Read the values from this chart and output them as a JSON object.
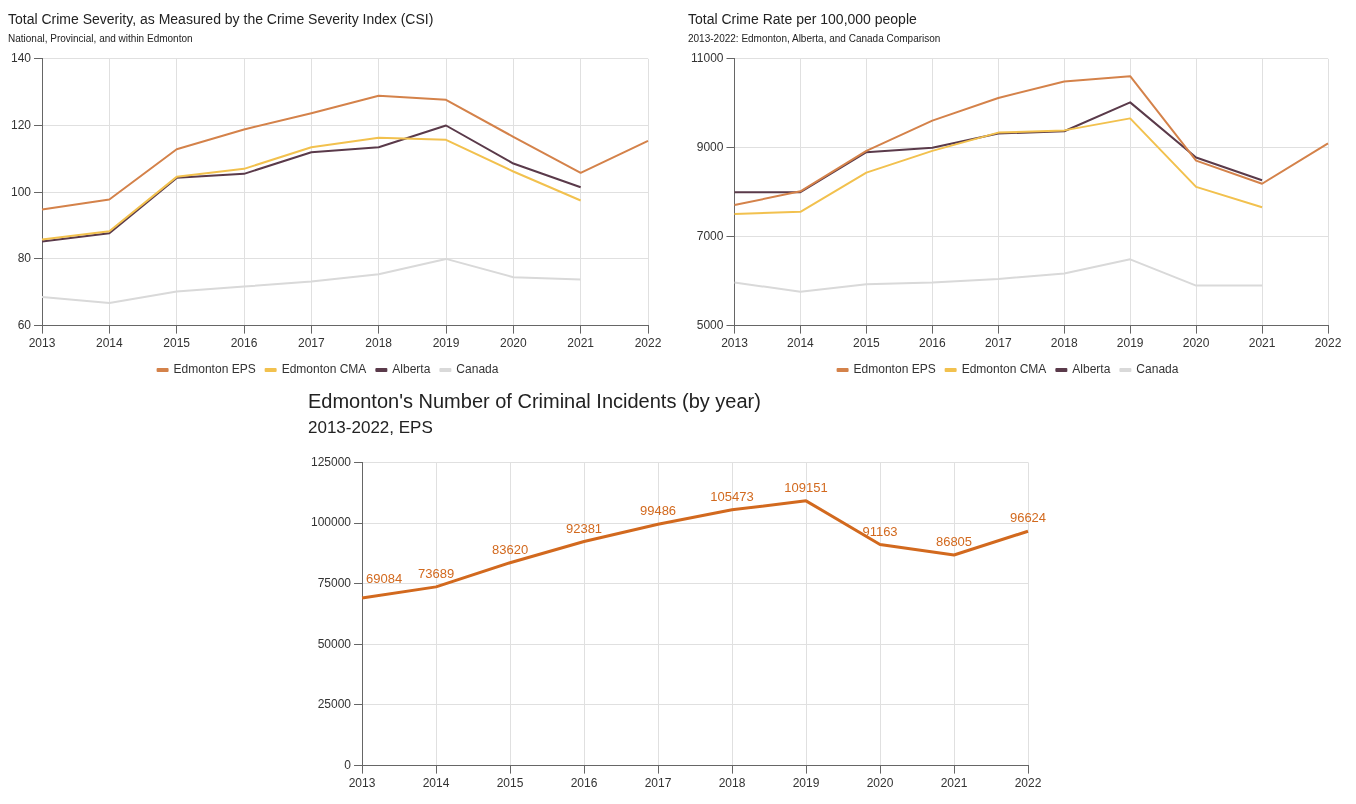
{
  "chart_data": [
    {
      "type": "line",
      "title": "Total Crime Severity, as Measured by the Crime Severity Index (CSI)",
      "subtitle": "National, Provincial, and within Edmonton",
      "categories": [
        "2013",
        "2014",
        "2015",
        "2016",
        "2017",
        "2018",
        "2019",
        "2020",
        "2021",
        "2022"
      ],
      "series": [
        {
          "name": "Edmonton EPS",
          "color": "#d4824a",
          "values": [
            94.8,
            97.8,
            112.9,
            118.8,
            123.7,
            128.9,
            127.7,
            116.6,
            105.8,
            115.4
          ]
        },
        {
          "name": "Edmonton CMA",
          "color": "#f2c14e",
          "values": [
            85.8,
            88.3,
            104.6,
            107,
            113.5,
            116.3,
            115.7,
            106.2,
            97.5,
            null
          ]
        },
        {
          "name": "Alberta",
          "color": "#5a3a4a",
          "values": [
            85.2,
            87.7,
            104.3,
            105.5,
            112,
            113.5,
            120,
            108.6,
            101.5,
            null
          ]
        },
        {
          "name": "Canada",
          "color": "#d9d9d9",
          "values": [
            68.6,
            66.8,
            70.2,
            71.7,
            73.2,
            75.4,
            80,
            74.5,
            73.8,
            null
          ]
        }
      ],
      "ylim": [
        60,
        140
      ],
      "yticks": [
        60,
        80,
        100,
        120,
        140
      ],
      "grid": true,
      "legend": "bottom",
      "marker": "none"
    },
    {
      "type": "line",
      "title": "Total Crime Rate per 100,000 people",
      "subtitle": "2013-2022: Edmonton, Alberta, and Canada Comparison",
      "categories": [
        "2013",
        "2014",
        "2015",
        "2016",
        "2017",
        "2018",
        "2019",
        "2020",
        "2021",
        "2022"
      ],
      "series": [
        {
          "name": "Edmonton EPS",
          "color": "#d4824a",
          "values": [
            7710,
            8020,
            8930,
            9610,
            10120,
            10490,
            10610,
            8710,
            8190,
            9100
          ]
        },
        {
          "name": "Edmonton CMA",
          "color": "#f2c14e",
          "values": [
            7510,
            7560,
            8440,
            8930,
            9340,
            9390,
            9660,
            8120,
            7660,
            null
          ]
        },
        {
          "name": "Alberta",
          "color": "#5a3a4a",
          "values": [
            8000,
            8000,
            8900,
            9000,
            9320,
            9370,
            10020,
            8780,
            8270,
            null
          ]
        },
        {
          "name": "Canada",
          "color": "#d9d9d9",
          "values": [
            5970,
            5760,
            5930,
            5970,
            6050,
            6170,
            6490,
            5900,
            5900,
            null
          ]
        }
      ],
      "ylim": [
        5000,
        11000
      ],
      "yticks": [
        5000,
        7000,
        9000,
        11000
      ],
      "grid": true,
      "legend": "bottom",
      "marker": "none"
    },
    {
      "type": "line",
      "title": "Edmonton's Number of Criminal Incidents (by year)",
      "subtitle": "2013-2022, EPS",
      "categories": [
        "2013",
        "2014",
        "2015",
        "2016",
        "2017",
        "2018",
        "2019",
        "2020",
        "2021",
        "2022"
      ],
      "series": [
        {
          "color": "#d2691e",
          "values": [
            69084,
            73689,
            83620,
            92381,
            99486,
            105473,
            109151,
            91163,
            86805,
            96624
          ]
        }
      ],
      "ylim": [
        0,
        125000
      ],
      "yticks": [
        0,
        25000,
        50000,
        75000,
        100000,
        125000
      ],
      "grid": true,
      "legend": false,
      "marker": "none",
      "data_labels": true
    }
  ]
}
